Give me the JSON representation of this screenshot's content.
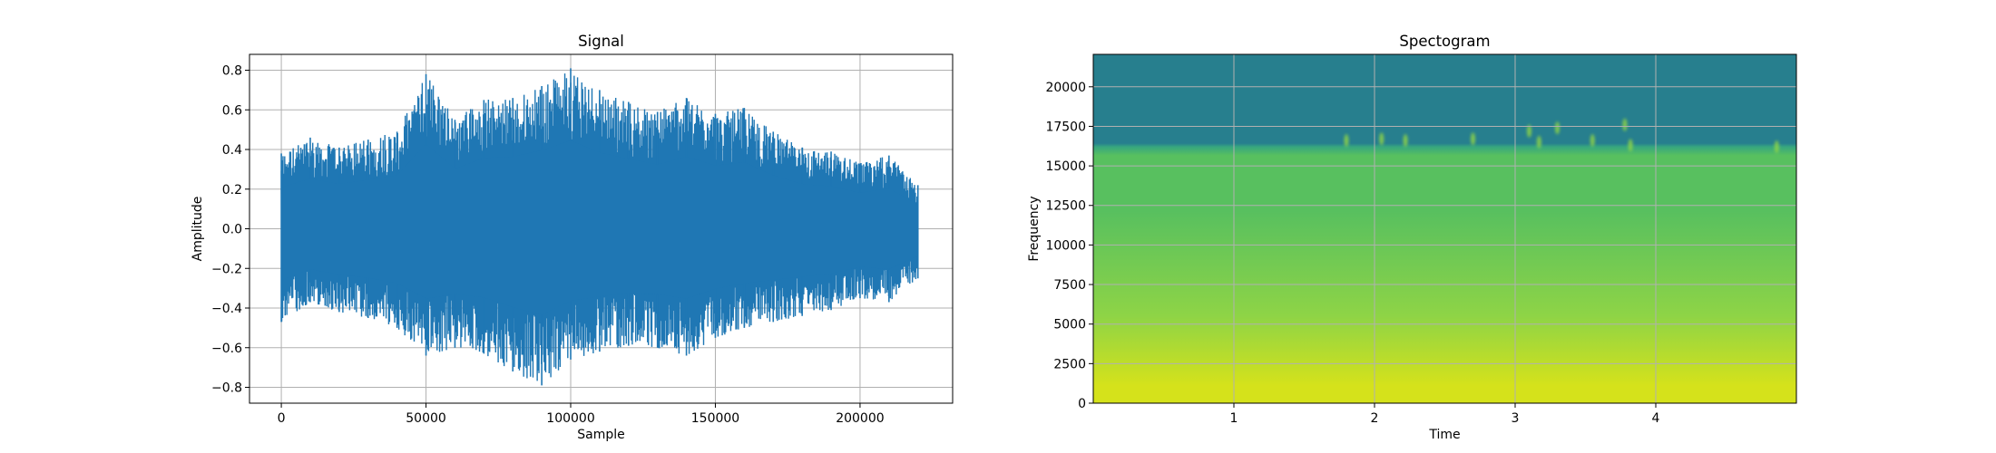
{
  "chart_data": [
    {
      "type": "line",
      "title": "Signal",
      "xlabel": "Sample",
      "ylabel": "Amplitude",
      "xlim": [
        -11000,
        232000
      ],
      "ylim": [
        -0.88,
        0.88
      ],
      "xticks": [
        0,
        50000,
        100000,
        150000,
        200000
      ],
      "xtick_labels": [
        "0",
        "50000",
        "100000",
        "150000",
        "200000"
      ],
      "yticks": [
        -0.8,
        -0.6,
        -0.4,
        -0.2,
        0.0,
        0.2,
        0.4,
        0.6,
        0.8
      ],
      "ytick_labels": [
        "−0.8",
        "−0.6",
        "−0.4",
        "−0.2",
        "0.0",
        "0.2",
        "0.4",
        "0.6",
        "0.8"
      ],
      "grid": true,
      "color": "#1f77b4",
      "series": [
        {
          "x": [
            0,
            10000,
            20000,
            30000,
            40000,
            50000,
            60000,
            70000,
            80000,
            90000,
            100000,
            110000,
            120000,
            130000,
            140000,
            150000,
            160000,
            170000,
            180000,
            190000,
            200000,
            210000,
            220000
          ],
          "upper": [
            0.38,
            0.46,
            0.41,
            0.45,
            0.49,
            0.78,
            0.55,
            0.65,
            0.66,
            0.72,
            0.81,
            0.7,
            0.64,
            0.59,
            0.66,
            0.58,
            0.61,
            0.49,
            0.41,
            0.39,
            0.33,
            0.37,
            0.22
          ],
          "lower": [
            -0.47,
            -0.37,
            -0.42,
            -0.45,
            -0.5,
            -0.64,
            -0.6,
            -0.63,
            -0.72,
            -0.79,
            -0.66,
            -0.62,
            -0.59,
            -0.6,
            -0.64,
            -0.55,
            -0.5,
            -0.47,
            -0.44,
            -0.41,
            -0.35,
            -0.37,
            -0.25
          ]
        }
      ]
    },
    {
      "type": "heatmap",
      "title": "Spectogram",
      "xlabel": "Time",
      "ylabel": "Frequency",
      "xlim": [
        0,
        5
      ],
      "ylim": [
        0,
        22050
      ],
      "xticks": [
        1,
        2,
        3,
        4
      ],
      "xtick_labels": [
        "1",
        "2",
        "3",
        "4"
      ],
      "yticks": [
        0,
        2500,
        5000,
        7500,
        10000,
        12500,
        15000,
        17500,
        20000
      ],
      "ytick_labels": [
        "0",
        "2500",
        "5000",
        "7500",
        "10000",
        "12500",
        "15000",
        "17500",
        "20000"
      ],
      "grid": true,
      "colormap": "viridis",
      "cutoff_frequency": 16000,
      "colors": {
        "above_cutoff": "#277f8e",
        "transition": "#36a67f",
        "mid": "#58c05f",
        "low": "#8ed446",
        "base": "#d5e21b"
      },
      "spikes": [
        {
          "t": 1.8,
          "f": 16600
        },
        {
          "t": 2.05,
          "f": 16700
        },
        {
          "t": 2.22,
          "f": 16600
        },
        {
          "t": 2.7,
          "f": 16700
        },
        {
          "t": 3.1,
          "f": 17200
        },
        {
          "t": 3.17,
          "f": 16500
        },
        {
          "t": 3.3,
          "f": 17400
        },
        {
          "t": 3.55,
          "f": 16600
        },
        {
          "t": 3.78,
          "f": 17600
        },
        {
          "t": 3.82,
          "f": 16300
        },
        {
          "t": 4.86,
          "f": 16200
        }
      ]
    }
  ]
}
